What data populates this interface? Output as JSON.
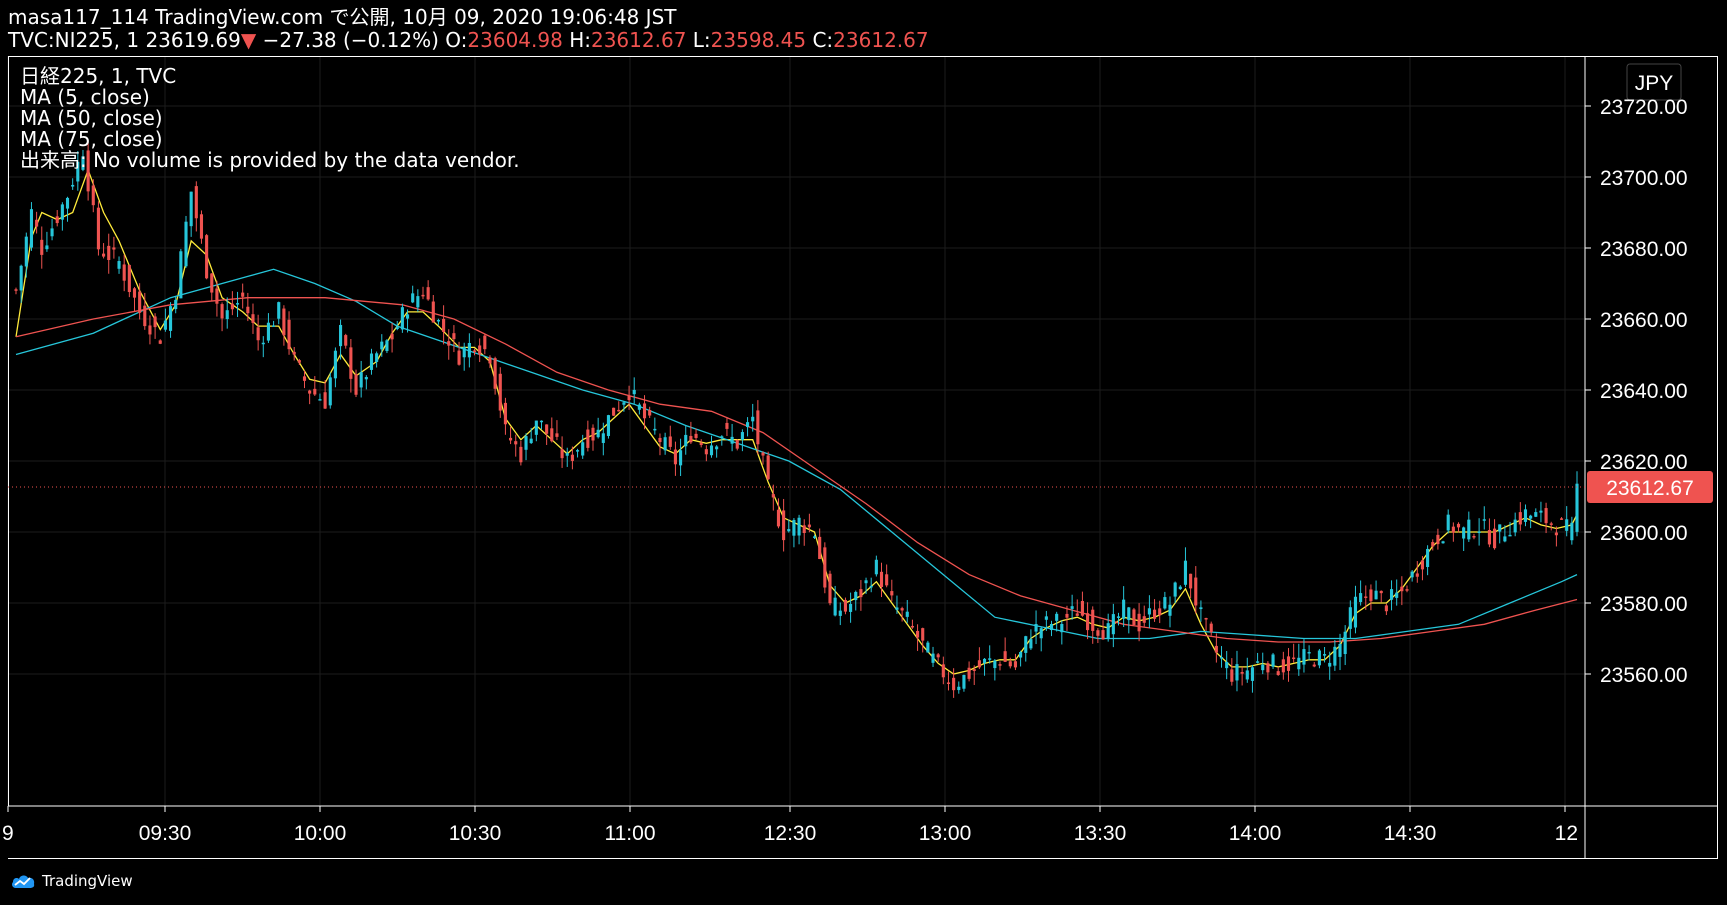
{
  "header": {
    "publish_line": "masa117_114 TradingView.com で公開, 10月 09, 2020 19:06:48 JST",
    "symbol": "TVC:NI225, 1",
    "last": "23619.69",
    "change_arrow": "▼",
    "change": "−27.38 (−0.12%)",
    "open_label": "O:",
    "open": "23604.98",
    "high_label": "H:",
    "high": "23612.67",
    "low_label": "L:",
    "low": "23598.45",
    "close_label": "C:",
    "close": "23612.67"
  },
  "legend": {
    "title": "日経225, 1, TVC",
    "ma5": "MA (5, close)",
    "ma50": "MA (50, close)",
    "ma75": "MA (75, close)",
    "volume": "出来高: No volume is provided by the data vendor."
  },
  "footer": {
    "brand": "TradingView"
  },
  "colors": {
    "background": "#000000",
    "up": "#26c6da",
    "down": "#ef5350",
    "ma5": "#ffeb3b",
    "ma50": "#26c6da",
    "ma75": "#ef5350",
    "grid": "#1c1c1c",
    "axis_border": "#ffffff",
    "last_price_bg": "#ef5350"
  },
  "icons": {
    "brand_logo": "tradingview-cloud-icon"
  },
  "chart_data": {
    "type": "candlestick",
    "currency": "JPY",
    "price_axis_labels": [
      "23720.00",
      "23700.00",
      "23680.00",
      "23660.00",
      "23640.00",
      "23620.00",
      "23600.00",
      "23580.00",
      "23560.00"
    ],
    "price_axis_values": [
      23720,
      23700,
      23680,
      23660,
      23640,
      23620,
      23600,
      23580,
      23560
    ],
    "time_axis_labels": [
      "9",
      "09:30",
      "10:00",
      "10:30",
      "11:00",
      "12:30",
      "13:00",
      "13:30",
      "14:00",
      "14:30",
      "12"
    ],
    "last_price_label": "23612.67",
    "last_price": 23612.67,
    "grid": true,
    "series": [
      {
        "name": "日経225, 1, TVC",
        "close_path": [
          [
            0,
            23668
          ],
          [
            3,
            23690
          ],
          [
            5,
            23680
          ],
          [
            7,
            23686
          ],
          [
            10,
            23695
          ],
          [
            13,
            23708
          ],
          [
            16,
            23680
          ],
          [
            20,
            23676
          ],
          [
            24,
            23662
          ],
          [
            28,
            23655
          ],
          [
            31,
            23668
          ],
          [
            34,
            23696
          ],
          [
            37,
            23674
          ],
          [
            40,
            23660
          ],
          [
            44,
            23666
          ],
          [
            47,
            23654
          ],
          [
            51,
            23662
          ],
          [
            54,
            23648
          ],
          [
            57,
            23640
          ],
          [
            60,
            23637
          ],
          [
            63,
            23656
          ],
          [
            66,
            23640
          ],
          [
            70,
            23650
          ],
          [
            73,
            23655
          ],
          [
            76,
            23664
          ],
          [
            79,
            23668
          ],
          [
            82,
            23659
          ],
          [
            86,
            23650
          ],
          [
            89,
            23654
          ],
          [
            92,
            23650
          ],
          [
            95,
            23628
          ],
          [
            98,
            23622
          ],
          [
            101,
            23632
          ],
          [
            104,
            23626
          ],
          [
            107,
            23620
          ],
          [
            110,
            23626
          ],
          [
            113,
            23628
          ],
          [
            116,
            23634
          ],
          [
            119,
            23640
          ],
          [
            122,
            23632
          ],
          [
            125,
            23626
          ],
          [
            128,
            23620
          ],
          [
            131,
            23628
          ],
          [
            134,
            23624
          ],
          [
            137,
            23628
          ],
          [
            140,
            23625
          ],
          [
            143,
            23632
          ],
          [
            146,
            23612
          ],
          [
            149,
            23600
          ],
          [
            152,
            23603
          ],
          [
            155,
            23600
          ],
          [
            158,
            23579
          ],
          [
            161,
            23578
          ],
          [
            164,
            23583
          ],
          [
            167,
            23590
          ],
          [
            170,
            23580
          ],
          [
            173,
            23575
          ],
          [
            176,
            23568
          ],
          [
            179,
            23562
          ],
          [
            182,
            23557
          ],
          [
            185,
            23560
          ],
          [
            188,
            23563
          ],
          [
            191,
            23564
          ],
          [
            194,
            23562
          ],
          [
            197,
            23572
          ],
          [
            200,
            23574
          ],
          [
            203,
            23575
          ],
          [
            206,
            23578
          ],
          [
            209,
            23574
          ],
          [
            212,
            23572
          ],
          [
            215,
            23578
          ],
          [
            218,
            23574
          ],
          [
            221,
            23578
          ],
          [
            224,
            23580
          ],
          [
            227,
            23590
          ],
          [
            230,
            23576
          ],
          [
            233,
            23566
          ],
          [
            236,
            23560
          ],
          [
            239,
            23561
          ],
          [
            242,
            23564
          ],
          [
            245,
            23562
          ],
          [
            248,
            23563
          ],
          [
            251,
            23565
          ],
          [
            254,
            23564
          ],
          [
            257,
            23568
          ],
          [
            260,
            23580
          ],
          [
            263,
            23583
          ],
          [
            266,
            23580
          ],
          [
            269,
            23583
          ],
          [
            272,
            23590
          ],
          [
            275,
            23597
          ],
          [
            278,
            23602
          ],
          [
            281,
            23600
          ],
          [
            284,
            23602
          ],
          [
            287,
            23598
          ],
          [
            290,
            23602
          ],
          [
            293,
            23605
          ],
          [
            296,
            23604
          ],
          [
            299,
            23602
          ],
          [
            302,
            23600
          ],
          [
            303,
            23612.67
          ]
        ],
        "up_color": "#26c6da",
        "down_color": "#ef5350"
      },
      {
        "name": "MA (5, close)",
        "color": "#ffeb3b",
        "path": [
          [
            0,
            23655
          ],
          [
            3,
            23683
          ],
          [
            5,
            23690
          ],
          [
            8,
            23688
          ],
          [
            11,
            23690
          ],
          [
            14,
            23702
          ],
          [
            17,
            23690
          ],
          [
            20,
            23682
          ],
          [
            24,
            23668
          ],
          [
            28,
            23657
          ],
          [
            31,
            23664
          ],
          [
            34,
            23682
          ],
          [
            37,
            23678
          ],
          [
            40,
            23666
          ],
          [
            44,
            23662
          ],
          [
            47,
            23658
          ],
          [
            51,
            23658
          ],
          [
            54,
            23650
          ],
          [
            57,
            23643
          ],
          [
            60,
            23642
          ],
          [
            63,
            23650
          ],
          [
            66,
            23644
          ],
          [
            70,
            23648
          ],
          [
            73,
            23656
          ],
          [
            76,
            23662
          ],
          [
            79,
            23662
          ],
          [
            82,
            23658
          ],
          [
            86,
            23652
          ],
          [
            89,
            23652
          ],
          [
            92,
            23648
          ],
          [
            95,
            23632
          ],
          [
            98,
            23626
          ],
          [
            101,
            23630
          ],
          [
            104,
            23626
          ],
          [
            107,
            23622
          ],
          [
            110,
            23626
          ],
          [
            113,
            23628
          ],
          [
            116,
            23632
          ],
          [
            119,
            23636
          ],
          [
            122,
            23630
          ],
          [
            125,
            23624
          ],
          [
            128,
            23622
          ],
          [
            131,
            23626
          ],
          [
            134,
            23625
          ],
          [
            137,
            23626
          ],
          [
            140,
            23626
          ],
          [
            143,
            23626
          ],
          [
            146,
            23614
          ],
          [
            149,
            23604
          ],
          [
            152,
            23602
          ],
          [
            155,
            23600
          ],
          [
            158,
            23585
          ],
          [
            161,
            23580
          ],
          [
            164,
            23582
          ],
          [
            167,
            23586
          ],
          [
            170,
            23580
          ],
          [
            173,
            23574
          ],
          [
            176,
            23568
          ],
          [
            179,
            23563
          ],
          [
            182,
            23560
          ],
          [
            185,
            23561
          ],
          [
            188,
            23563
          ],
          [
            191,
            23564
          ],
          [
            194,
            23564
          ],
          [
            197,
            23570
          ],
          [
            200,
            23573
          ],
          [
            203,
            23575
          ],
          [
            206,
            23576
          ],
          [
            209,
            23574
          ],
          [
            212,
            23573
          ],
          [
            215,
            23576
          ],
          [
            218,
            23575
          ],
          [
            221,
            23576
          ],
          [
            224,
            23578
          ],
          [
            227,
            23584
          ],
          [
            230,
            23574
          ],
          [
            233,
            23566
          ],
          [
            236,
            23562
          ],
          [
            239,
            23562
          ],
          [
            242,
            23563
          ],
          [
            245,
            23562
          ],
          [
            248,
            23563
          ],
          [
            251,
            23564
          ],
          [
            254,
            23564
          ],
          [
            257,
            23568
          ],
          [
            260,
            23577
          ],
          [
            263,
            23580
          ],
          [
            266,
            23580
          ],
          [
            269,
            23584
          ],
          [
            272,
            23590
          ],
          [
            275,
            23596
          ],
          [
            278,
            23600
          ],
          [
            281,
            23600
          ],
          [
            284,
            23600
          ],
          [
            287,
            23600
          ],
          [
            290,
            23602
          ],
          [
            293,
            23604
          ],
          [
            296,
            23602
          ],
          [
            299,
            23601
          ],
          [
            302,
            23602
          ],
          [
            303,
            23605
          ]
        ]
      },
      {
        "name": "MA (50, close)",
        "color": "#26c6da",
        "path": [
          [
            0,
            23650
          ],
          [
            15,
            23656
          ],
          [
            30,
            23666
          ],
          [
            45,
            23672
          ],
          [
            50,
            23674
          ],
          [
            58,
            23670
          ],
          [
            66,
            23665
          ],
          [
            74,
            23658
          ],
          [
            82,
            23654
          ],
          [
            90,
            23650
          ],
          [
            100,
            23645
          ],
          [
            110,
            23640
          ],
          [
            120,
            23636
          ],
          [
            130,
            23630
          ],
          [
            140,
            23625
          ],
          [
            150,
            23620
          ],
          [
            160,
            23612
          ],
          [
            170,
            23600
          ],
          [
            180,
            23588
          ],
          [
            190,
            23576
          ],
          [
            200,
            23573
          ],
          [
            210,
            23570
          ],
          [
            220,
            23570
          ],
          [
            230,
            23572
          ],
          [
            240,
            23571
          ],
          [
            250,
            23570
          ],
          [
            260,
            23570
          ],
          [
            270,
            23572
          ],
          [
            280,
            23574
          ],
          [
            290,
            23580
          ],
          [
            300,
            23586
          ],
          [
            303,
            23588
          ]
        ]
      },
      {
        "name": "MA (75, close)",
        "color": "#ef5350",
        "path": [
          [
            0,
            23655
          ],
          [
            15,
            23660
          ],
          [
            30,
            23664
          ],
          [
            45,
            23666
          ],
          [
            60,
            23666
          ],
          [
            75,
            23664
          ],
          [
            85,
            23660
          ],
          [
            95,
            23653
          ],
          [
            105,
            23645
          ],
          [
            115,
            23640
          ],
          [
            125,
            23636
          ],
          [
            135,
            23634
          ],
          [
            145,
            23628
          ],
          [
            155,
            23618
          ],
          [
            165,
            23608
          ],
          [
            175,
            23597
          ],
          [
            185,
            23588
          ],
          [
            195,
            23582
          ],
          [
            205,
            23578
          ],
          [
            215,
            23574
          ],
          [
            225,
            23572
          ],
          [
            235,
            23570
          ],
          [
            245,
            23569
          ],
          [
            255,
            23569
          ],
          [
            265,
            23570
          ],
          [
            275,
            23572
          ],
          [
            285,
            23574
          ],
          [
            295,
            23578
          ],
          [
            303,
            23581
          ]
        ]
      }
    ]
  }
}
